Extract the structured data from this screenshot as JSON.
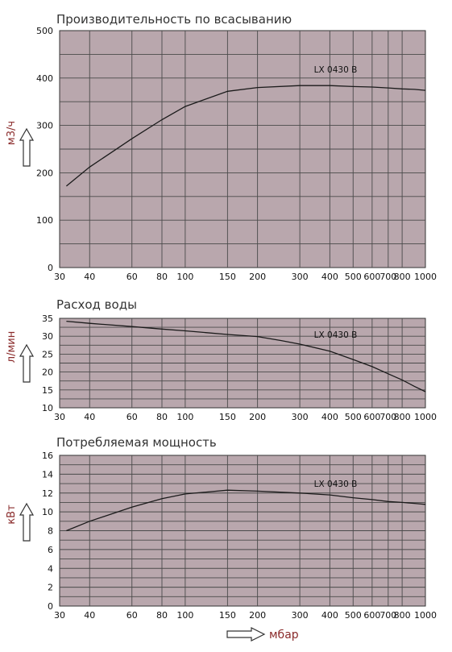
{
  "chart_data": [
    {
      "type": "line",
      "title": "Производительность по всасыванию",
      "ylabel": "м3/ч",
      "xscale": "log",
      "xlim": [
        30,
        1000
      ],
      "ylim": [
        0,
        500
      ],
      "xticks": [
        30,
        40,
        60,
        80,
        100,
        150,
        200,
        300,
        400,
        500,
        600,
        700,
        800,
        1000
      ],
      "yticks": [
        0,
        100,
        200,
        300,
        400,
        500
      ],
      "grid": true,
      "series": [
        {
          "name": "LX 0430 B",
          "x": [
            32,
            40,
            50,
            60,
            80,
            100,
            150,
            200,
            300,
            400,
            500,
            600,
            700,
            800,
            900,
            1000
          ],
          "y": [
            172,
            212,
            245,
            272,
            312,
            340,
            372,
            380,
            384,
            384,
            382,
            381,
            379,
            377,
            376,
            374
          ]
        }
      ]
    },
    {
      "type": "line",
      "title": "Расход воды",
      "ylabel": "л/мин",
      "xscale": "log",
      "xlim": [
        30,
        1000
      ],
      "ylim": [
        10,
        35
      ],
      "xticks": [
        30,
        40,
        60,
        80,
        100,
        150,
        200,
        300,
        400,
        500,
        600,
        700,
        800,
        1000
      ],
      "yticks": [
        10,
        15,
        20,
        25,
        30,
        35
      ],
      "grid": true,
      "series": [
        {
          "name": "LX 0430 B",
          "x": [
            32,
            40,
            60,
            80,
            100,
            150,
            200,
            250,
            300,
            400,
            500,
            600,
            700,
            800,
            900,
            1000
          ],
          "y": [
            34.2,
            33.6,
            32.7,
            32.0,
            31.5,
            30.5,
            29.9,
            28.8,
            27.8,
            25.8,
            23.5,
            21.5,
            19.5,
            17.8,
            16.0,
            14.5
          ]
        }
      ]
    },
    {
      "type": "line",
      "title": "Потребляемая мощность",
      "ylabel": "кВт",
      "xlabel": "мбар",
      "xscale": "log",
      "xlim": [
        30,
        1000
      ],
      "ylim": [
        0,
        16
      ],
      "xticks": [
        30,
        40,
        60,
        80,
        100,
        150,
        200,
        300,
        400,
        500,
        600,
        700,
        800,
        1000
      ],
      "yticks": [
        0,
        2,
        4,
        6,
        8,
        10,
        12,
        14,
        16
      ],
      "grid": true,
      "series": [
        {
          "name": "LX 0430 B",
          "x": [
            32,
            40,
            60,
            80,
            100,
            150,
            200,
            300,
            400,
            500,
            600,
            700,
            800,
            900,
            1000
          ],
          "y": [
            8.0,
            9.0,
            10.5,
            11.4,
            11.9,
            12.3,
            12.2,
            12.0,
            11.8,
            11.5,
            11.3,
            11.1,
            11.0,
            10.9,
            10.8
          ]
        }
      ]
    }
  ],
  "colors": {
    "plot_background": "#b9a7ad",
    "grid": "#4a4a4a",
    "curve": "#1a1a1a",
    "axis_label": "#8a2b2b"
  }
}
